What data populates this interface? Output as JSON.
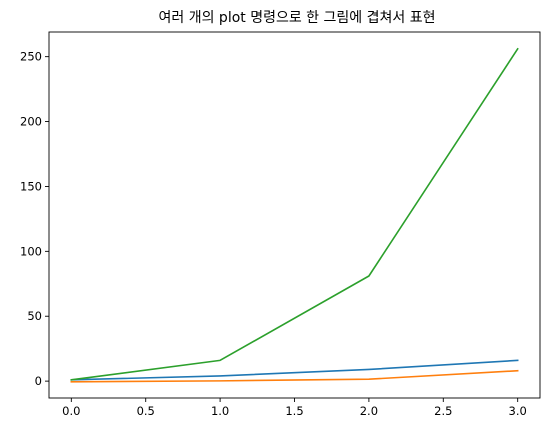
{
  "chart_data": {
    "type": "line",
    "title": "여러 개의 plot 명령으로 한 그림에 겹쳐서 표현",
    "xlabel": "",
    "ylabel": "",
    "xlim": [
      -0.15,
      3.15
    ],
    "ylim": [
      -13,
      269
    ],
    "grid": false,
    "x": [
      0,
      1,
      2,
      3
    ],
    "series": [
      {
        "values": [
          1,
          4,
          9,
          16
        ],
        "color": "#1f77b4"
      },
      {
        "values": [
          -0.5,
          0.2,
          1.5,
          8
        ],
        "color": "#ff7f0e"
      },
      {
        "values": [
          1,
          16,
          81,
          256
        ],
        "color": "#2ca02c"
      }
    ],
    "xticks": [
      {
        "value": 0.0,
        "label": "0.0"
      },
      {
        "value": 0.5,
        "label": "0.5"
      },
      {
        "value": 1.0,
        "label": "1.0"
      },
      {
        "value": 1.5,
        "label": "1.5"
      },
      {
        "value": 2.0,
        "label": "2.0"
      },
      {
        "value": 2.5,
        "label": "2.5"
      },
      {
        "value": 3.0,
        "label": "3.0"
      }
    ],
    "yticks": [
      {
        "value": 0,
        "label": "0"
      },
      {
        "value": 50,
        "label": "50"
      },
      {
        "value": 100,
        "label": "100"
      },
      {
        "value": 150,
        "label": "150"
      },
      {
        "value": 200,
        "label": "200"
      },
      {
        "value": 250,
        "label": "250"
      }
    ]
  }
}
